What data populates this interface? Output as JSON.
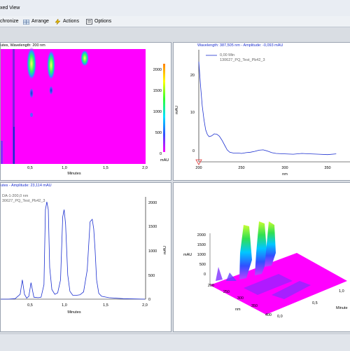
{
  "window": {
    "title": "xed View"
  },
  "toolbar": {
    "items": [
      {
        "label": "chronize",
        "icon": "synchronize-icon"
      },
      {
        "label": "Arrange",
        "icon": "arrange-icon"
      },
      {
        "label": "Actions",
        "icon": "actions-icon"
      },
      {
        "label": "Options",
        "icon": "options-icon"
      }
    ]
  },
  "panes": {
    "top_left": {
      "title": "utes, Wavelength: 200 nm",
      "xlabel": "Minutes",
      "xticks": [
        "0,5",
        "1,0",
        "1,5",
        "2,0"
      ],
      "colorbar_ticks": [
        "2000",
        "1500",
        "1000",
        "500",
        "0"
      ],
      "colorbar_unit": "mAU"
    },
    "top_right": {
      "title": "Wavelength: 387,505 nm - Amplitude: -0,093 mAU",
      "legend_line1": "0,00 Min",
      "legend_line2": "130627_PQ_Test_Pb42_3",
      "ylabel": "mAU",
      "xlabel": "nm",
      "xticks": [
        "200",
        "250",
        "300",
        "350"
      ],
      "yticks": [
        "20",
        "10",
        "0"
      ]
    },
    "bottom_left": {
      "title": "utes - Amplitude: 23,114 mAU",
      "legend_line1": "DA-1-200,0 nm",
      "legend_line2": "30627_PQ_Test_Pb42_3",
      "ylabel": "mAU",
      "xlabel": "Minutes",
      "xticks": [
        "0,5",
        "1,0",
        "1,5",
        "2,0"
      ],
      "yticks": [
        "2000",
        "1500",
        "1000",
        "500",
        "0"
      ]
    },
    "bottom_right": {
      "zlabel": "mAU",
      "zticks": [
        "2000",
        "1500",
        "1000",
        "500",
        "0"
      ],
      "nm_label": "nm",
      "nm_ticks": [
        "200",
        "250",
        "300",
        "350",
        "400"
      ],
      "time_label": "Minute",
      "time_ticks": [
        "0,0",
        "0,5",
        "1,0"
      ]
    }
  },
  "colors": {
    "accent": "#1b2fd0",
    "magenta": "#ff00ff",
    "trace": "#1b2fd0"
  },
  "chart_data": [
    {
      "type": "line",
      "title": "Wavelength: 387,505 nm - Amplitude: -0,093 mAU",
      "xlabel": "nm",
      "ylabel": "mAU",
      "xlim": [
        200,
        360
      ],
      "ylim": [
        -2,
        26
      ],
      "series": [
        {
          "name": "130627_PQ_Test_Pb42_3",
          "x": [
            200,
            202,
            204,
            206,
            208,
            210,
            212,
            215,
            218,
            221,
            224,
            227,
            230,
            233,
            236,
            240,
            245,
            250,
            255,
            260,
            265,
            270,
            275,
            280,
            285,
            290,
            300,
            310,
            320,
            330,
            340,
            350,
            360
          ],
          "y": [
            23,
            17,
            12,
            8.5,
            6,
            4.8,
            4.3,
            4.5,
            5.0,
            4.9,
            4.4,
            3.4,
            2.2,
            1.0,
            0.4,
            0.2,
            0.2,
            0.1,
            0.3,
            0.4,
            0.6,
            0.9,
            1.0,
            0.7,
            0.3,
            0.1,
            0.0,
            -0.1,
            0.1,
            0.0,
            -0.1,
            -0.2,
            0.0
          ]
        }
      ]
    },
    {
      "type": "line",
      "title": "utes - Amplitude: 23,114 mAU",
      "xlabel": "Minutes",
      "ylabel": "mAU",
      "xlim": [
        0,
        2.0
      ],
      "ylim": [
        0,
        2200
      ],
      "series": [
        {
          "name": "DA-1-200,0 nm",
          "x": [
            0.0,
            0.1,
            0.2,
            0.27,
            0.3,
            0.33,
            0.36,
            0.39,
            0.42,
            0.46,
            0.52,
            0.56,
            0.6,
            0.62,
            0.64,
            0.66,
            0.68,
            0.71,
            0.75,
            0.79,
            0.83,
            0.86,
            0.88,
            0.9,
            0.93,
            0.96,
            1.0,
            1.05,
            1.1,
            1.15,
            1.2,
            1.24,
            1.27,
            1.29,
            1.31,
            1.33,
            1.36,
            1.4,
            1.5,
            1.7,
            2.0
          ],
          "y": [
            0,
            0,
            10,
            100,
            400,
            100,
            20,
            60,
            340,
            40,
            30,
            40,
            300,
            1850,
            2010,
            1850,
            650,
            200,
            100,
            130,
            400,
            1700,
            1850,
            1550,
            500,
            160,
            80,
            80,
            90,
            150,
            600,
            1600,
            1650,
            1450,
            1000,
            400,
            120,
            60,
            30,
            10,
            0
          ]
        }
      ]
    },
    {
      "type": "heatmap",
      "title": "utes, Wavelength: 200 nm",
      "xlabel": "Minutes",
      "colorbar_label": "mAU",
      "colorbar_range": [
        0,
        2000
      ]
    }
  ]
}
